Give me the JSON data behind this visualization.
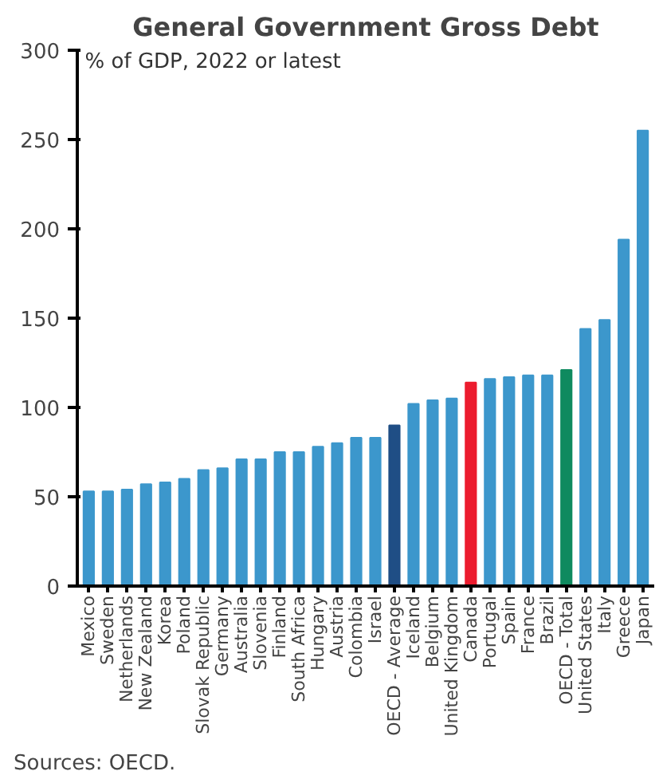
{
  "chart_data": {
    "type": "bar",
    "title": "General Government Gross Debt",
    "subtitle": "% of GDP, 2022 or latest",
    "categories": [
      "Mexico",
      "Sweden",
      "Netherlands",
      "New Zealand",
      "Korea",
      "Poland",
      "Slovak Republic",
      "Germany",
      "Australia",
      "Slovenia",
      "Finland",
      "South Africa",
      "Hungary",
      "Austria",
      "Colombia",
      "Israel",
      "OECD - Average",
      "Iceland",
      "Belgium",
      "United Kingdom",
      "Canada",
      "Portugal",
      "Spain",
      "France",
      "Brazil",
      "OECD - Total",
      "United States",
      "Italy",
      "Greece",
      "Japan"
    ],
    "values": [
      53,
      53,
      54,
      57,
      58,
      60,
      65,
      66,
      71,
      71,
      75,
      75,
      78,
      80,
      83,
      83,
      90,
      102,
      104,
      105,
      114,
      116,
      117,
      118,
      118,
      121,
      144,
      149,
      194,
      255
    ],
    "colors": [
      "#3c97cc",
      "#3c97cc",
      "#3c97cc",
      "#3c97cc",
      "#3c97cc",
      "#3c97cc",
      "#3c97cc",
      "#3c97cc",
      "#3c97cc",
      "#3c97cc",
      "#3c97cc",
      "#3c97cc",
      "#3c97cc",
      "#3c97cc",
      "#3c97cc",
      "#3c97cc",
      "#1f4e85",
      "#3c97cc",
      "#3c97cc",
      "#3c97cc",
      "#ec1c2e",
      "#3c97cc",
      "#3c97cc",
      "#3c97cc",
      "#3c97cc",
      "#0f8a5f",
      "#3c97cc",
      "#3c97cc",
      "#3c97cc",
      "#3c97cc"
    ],
    "ylim": [
      0,
      300
    ],
    "yticks": [
      0,
      50,
      100,
      150,
      200,
      250,
      300
    ],
    "grid": false,
    "annotations": [
      "Sources: OECD."
    ]
  }
}
